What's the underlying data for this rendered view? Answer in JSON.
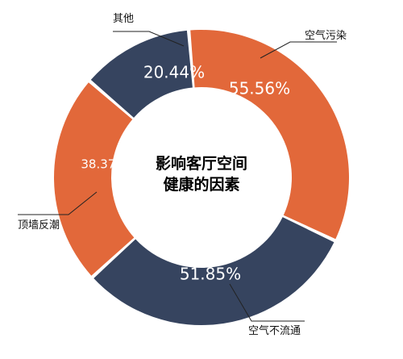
{
  "chart_data": {
    "type": "pie",
    "variant": "donut",
    "title_lines": [
      "影响客厅空间",
      "健康的因素"
    ],
    "slices": [
      {
        "label": "空气污染",
        "value": 55.56,
        "value_label": "55.56%",
        "color": "#E2683A"
      },
      {
        "label": "空气不流通",
        "value": 51.85,
        "value_label": "51.85%",
        "color": "#36445F"
      },
      {
        "label": "顶墙反潮",
        "value": 38.37,
        "value_label": "38.37%",
        "color": "#E2683A"
      },
      {
        "label": "其他",
        "value": 20.44,
        "value_label": "20.44%",
        "color": "#36445F"
      }
    ],
    "start_slice": "空气污染",
    "direction": "clockwise",
    "legend": "none",
    "grid": false
  }
}
